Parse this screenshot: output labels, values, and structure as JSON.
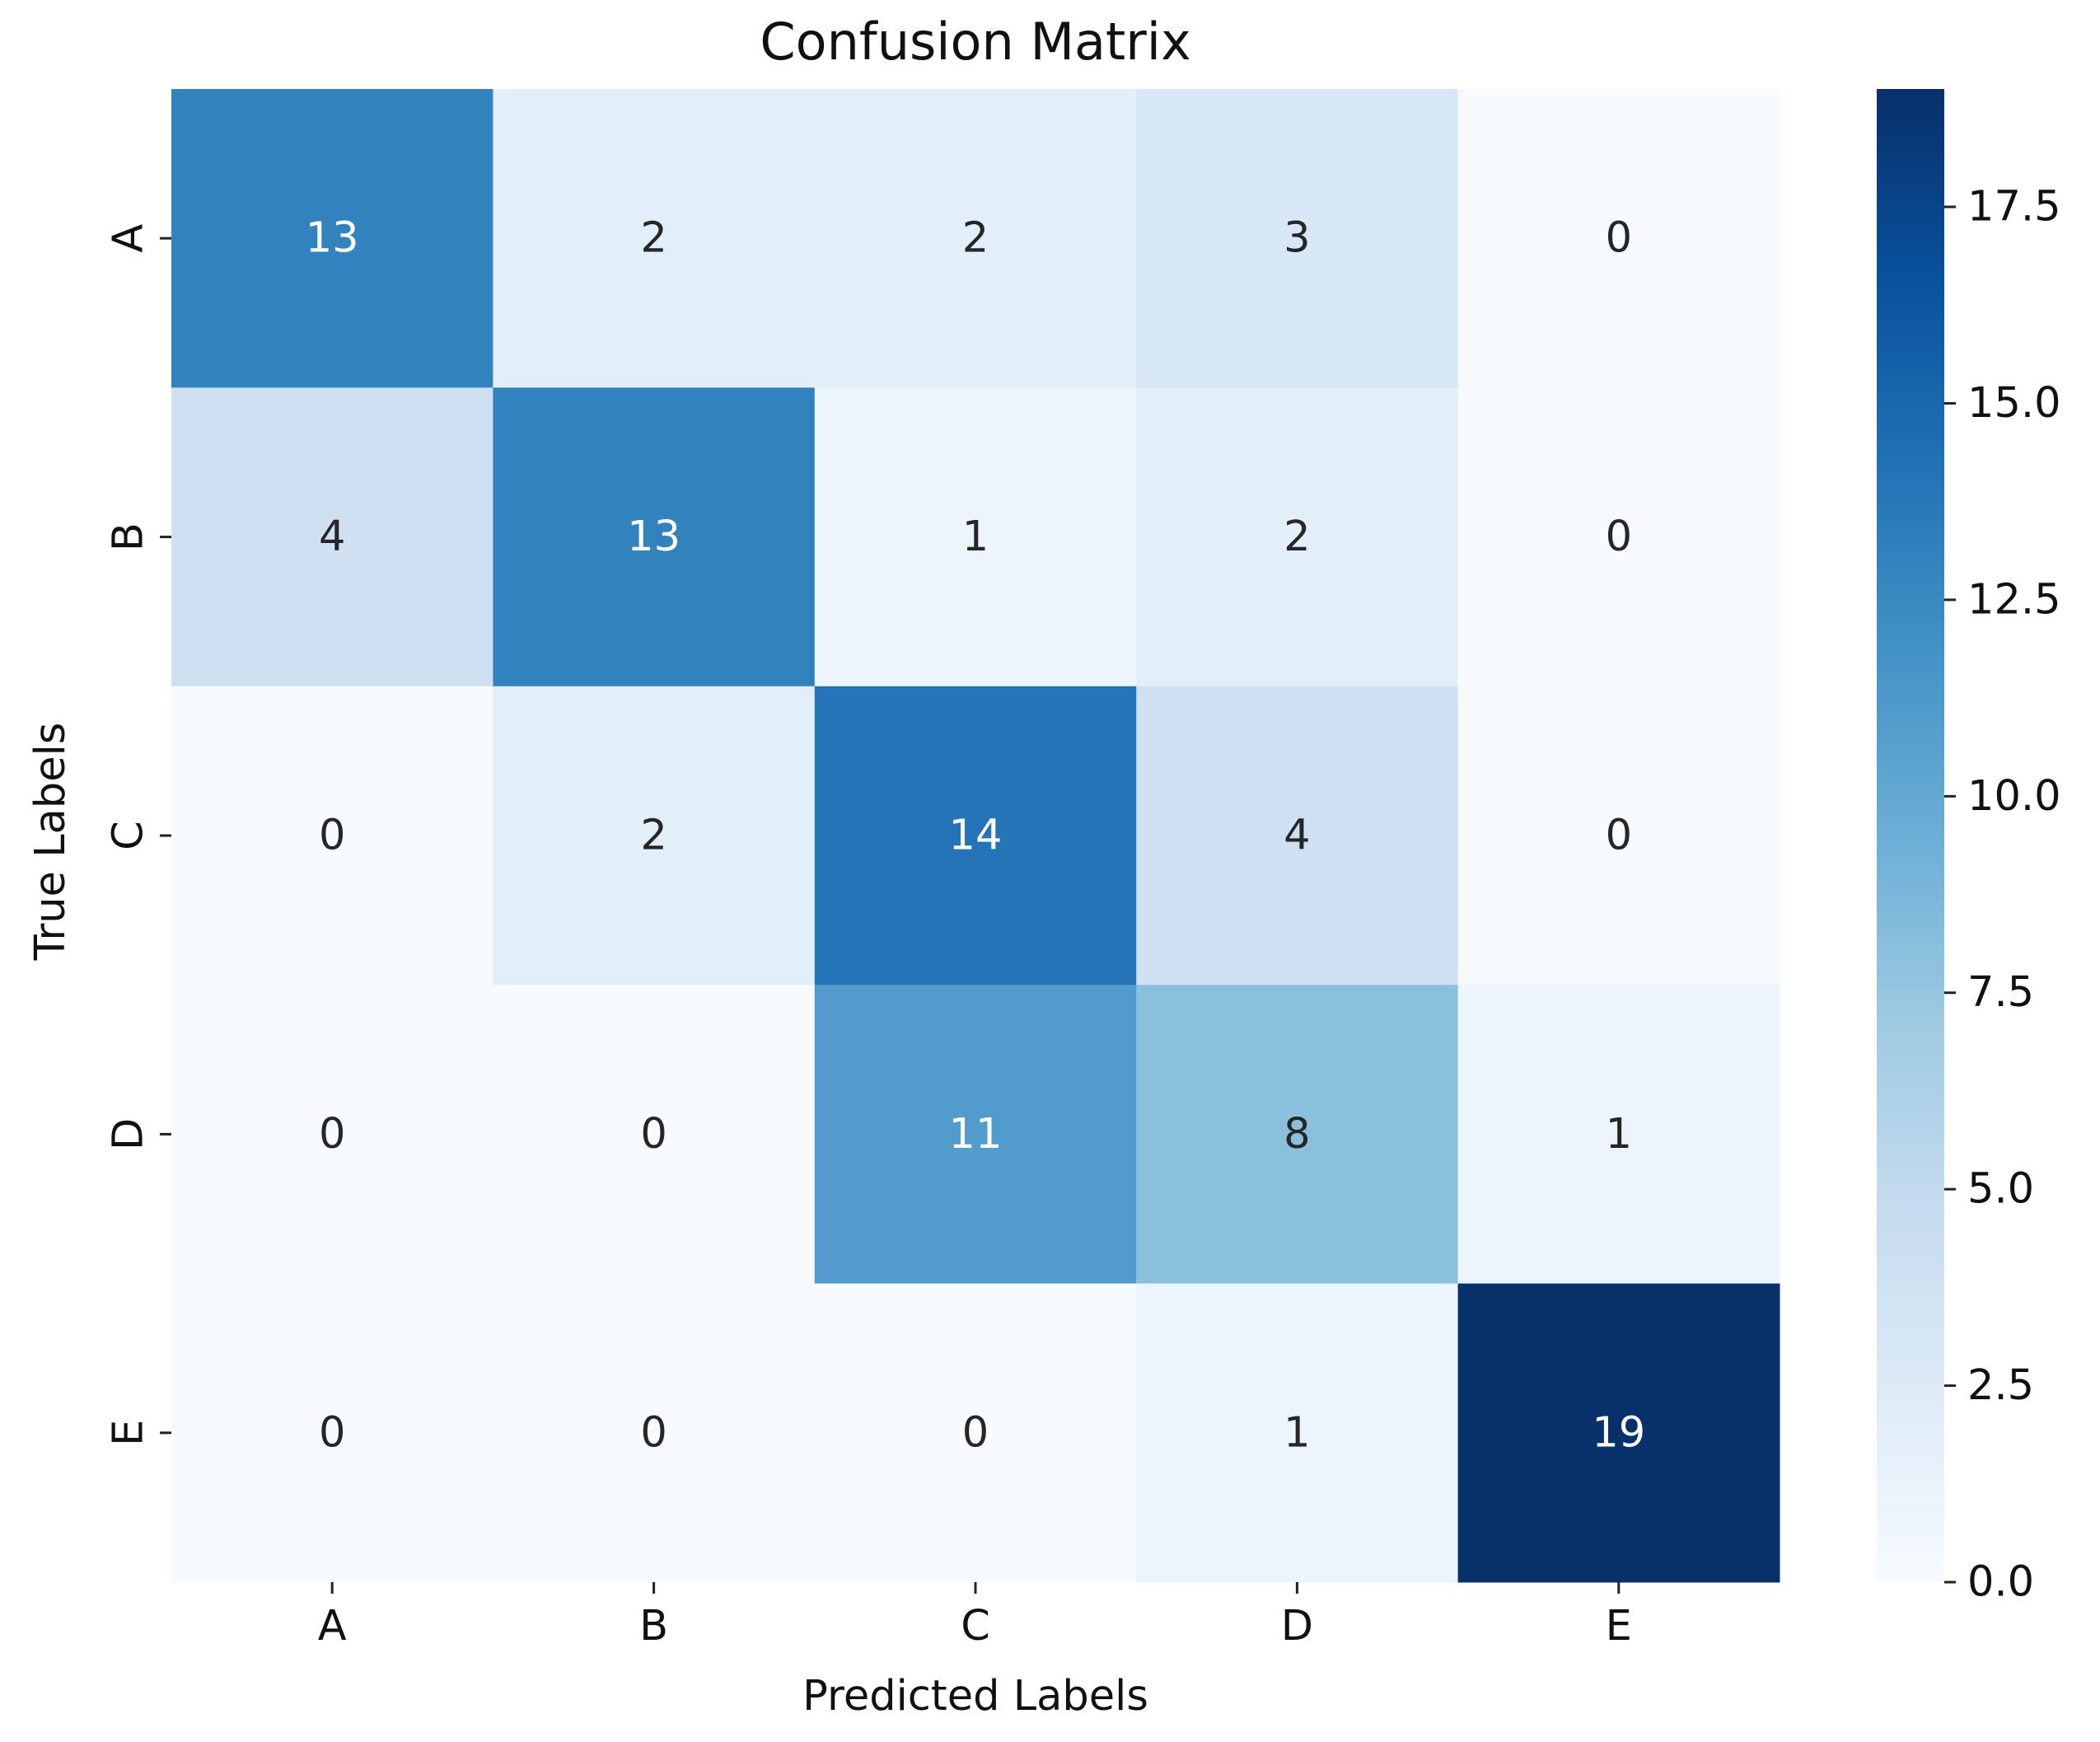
{
  "chart_data": {
    "type": "heatmap",
    "title": "Confusion Matrix",
    "xlabel": "Predicted Labels",
    "ylabel": "True Labels",
    "x_categories": [
      "A",
      "B",
      "C",
      "D",
      "E"
    ],
    "y_categories": [
      "A",
      "B",
      "C",
      "D",
      "E"
    ],
    "values": [
      [
        13,
        2,
        2,
        3,
        0
      ],
      [
        4,
        13,
        1,
        2,
        0
      ],
      [
        0,
        2,
        14,
        4,
        0
      ],
      [
        0,
        0,
        11,
        8,
        1
      ],
      [
        0,
        0,
        0,
        1,
        19
      ]
    ],
    "colormap": "Blues",
    "vmin": 0,
    "vmax": 19,
    "colorbar": {
      "ticks": [
        0.0,
        2.5,
        5.0,
        7.5,
        10.0,
        12.5,
        15.0,
        17.5
      ],
      "tick_labels": [
        "0.0",
        "2.5",
        "5.0",
        "7.5",
        "10.0",
        "12.5",
        "15.0",
        "17.5"
      ]
    },
    "text_colors": {
      "light": "#ffffff",
      "dark": "#262626"
    }
  }
}
